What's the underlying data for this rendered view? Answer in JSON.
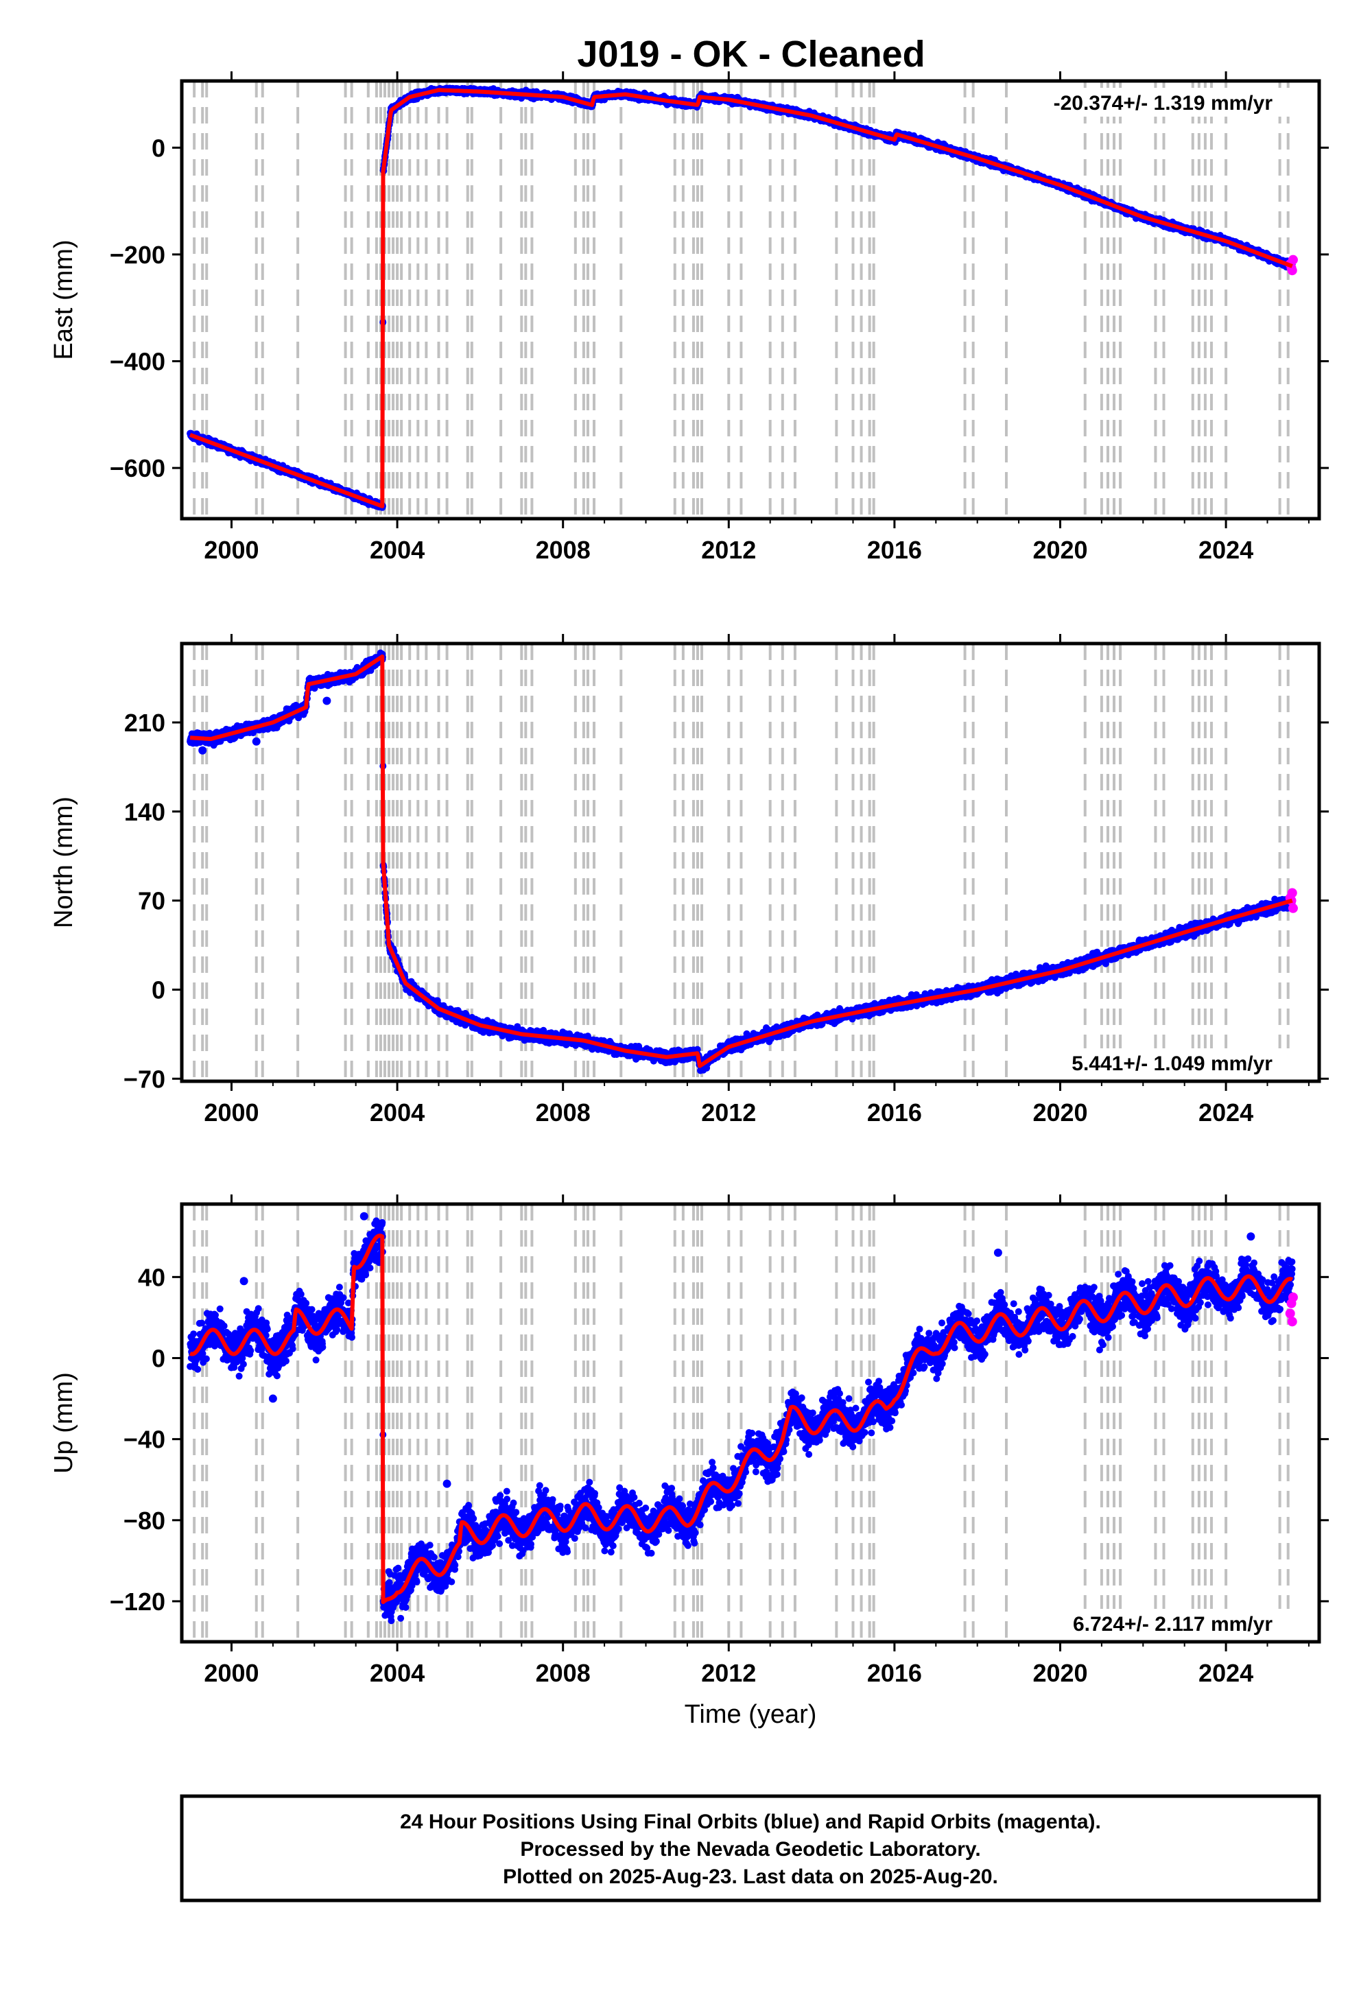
{
  "title": "J019  - OK - Cleaned",
  "footer": {
    "lines": [
      "24 Hour Positions Using Final Orbits (blue) and Rapid Orbits (magenta).",
      "Processed by the Nevada Geodetic Laboratory.",
      "Plotted on 2025-Aug-23. Last data on 2025-Aug-20."
    ]
  },
  "colors": {
    "final_orbits": "#0000ff",
    "rapid_orbits": "#ff00ff",
    "model": "#ff0000",
    "event_lines": "#c0c0c0"
  },
  "chart_data": [
    {
      "type": "scatter",
      "component": "east",
      "xlabel": "",
      "ylabel": "East (mm)",
      "xlim": [
        1998.8,
        2026.25
      ],
      "ylim": [
        -695,
        125
      ],
      "xticks": [
        2000,
        2004,
        2008,
        2012,
        2016,
        2020,
        2024
      ],
      "xtick_labels": [
        "2000",
        "2004",
        "2008",
        "2012",
        "2016",
        "2020",
        "2024"
      ],
      "yticks": [
        -600,
        -400,
        -200,
        0
      ],
      "ytick_labels": [
        "−600",
        "−400",
        "−200",
        "0"
      ],
      "rate_label": "-20.374+/- 1.319 mm/yr",
      "rate_position": "top-right",
      "noise": 4,
      "model": [
        [
          1999.0,
          -538
        ],
        [
          2003.65,
          -672
        ],
        [
          2003.66,
          -45
        ],
        [
          2003.85,
          70
        ],
        [
          2004.3,
          95
        ],
        [
          2005.0,
          108
        ],
        [
          2006.0,
          105
        ],
        [
          2008.0,
          95
        ],
        [
          2008.7,
          80
        ],
        [
          2008.75,
          95
        ],
        [
          2009.5,
          100
        ],
        [
          2010.5,
          88
        ],
        [
          2011.25,
          80
        ],
        [
          2011.3,
          95
        ],
        [
          2012.0,
          90
        ],
        [
          2014.0,
          60
        ],
        [
          2016.0,
          15
        ],
        [
          2016.05,
          25
        ],
        [
          2018.0,
          -20
        ],
        [
          2020.0,
          -70
        ],
        [
          2022.0,
          -130
        ],
        [
          2024.0,
          -175
        ],
        [
          2025.6,
          -222
        ]
      ],
      "rapid": [
        [
          2025.55,
          -218
        ],
        [
          2025.58,
          -225
        ],
        [
          2025.62,
          -210
        ],
        [
          2025.6,
          -230
        ]
      ]
    },
    {
      "type": "scatter",
      "component": "north",
      "xlabel": "",
      "ylabel": "North (mm)",
      "xlim": [
        1998.8,
        2026.25
      ],
      "ylim": [
        -72,
        272
      ],
      "xticks": [
        2000,
        2004,
        2008,
        2012,
        2016,
        2020,
        2024
      ],
      "xtick_labels": [
        "2000",
        "2004",
        "2008",
        "2012",
        "2016",
        "2020",
        "2024"
      ],
      "yticks": [
        -70,
        0,
        70,
        140,
        210
      ],
      "ytick_labels": [
        "−70",
        "0",
        "70",
        "140",
        "210"
      ],
      "rate_label": "5.441+/- 1.049 mm/yr",
      "rate_position": "bottom-right",
      "noise": 3,
      "model": [
        [
          1999.0,
          198
        ],
        [
          1999.5,
          197
        ],
        [
          2001.0,
          210
        ],
        [
          2001.8,
          222
        ],
        [
          2001.85,
          240
        ],
        [
          2003.0,
          248
        ],
        [
          2003.65,
          262
        ],
        [
          2003.66,
          100
        ],
        [
          2003.8,
          35
        ],
        [
          2004.2,
          5
        ],
        [
          2005.0,
          -15
        ],
        [
          2006.0,
          -28
        ],
        [
          2007.0,
          -35
        ],
        [
          2008.5,
          -40
        ],
        [
          2009.5,
          -48
        ],
        [
          2010.5,
          -53
        ],
        [
          2011.25,
          -50
        ],
        [
          2011.3,
          -60
        ],
        [
          2012.0,
          -45
        ],
        [
          2014.0,
          -25
        ],
        [
          2016.0,
          -12
        ],
        [
          2018.0,
          0
        ],
        [
          2020.0,
          15
        ],
        [
          2022.0,
          35
        ],
        [
          2024.0,
          55
        ],
        [
          2025.6,
          70
        ]
      ],
      "outliers": [
        [
          2000.6,
          195
        ],
        [
          2002.3,
          227
        ],
        [
          1999.3,
          188
        ]
      ],
      "rapid": [
        [
          2025.55,
          72
        ],
        [
          2025.6,
          76
        ],
        [
          2025.62,
          64
        ],
        [
          2025.58,
          70
        ]
      ]
    },
    {
      "type": "scatter",
      "component": "up",
      "xlabel": "Time (year)",
      "ylabel": "Up (mm)",
      "xlim": [
        1998.8,
        2026.25
      ],
      "ylim": [
        -140,
        76
      ],
      "xticks": [
        2000,
        2004,
        2008,
        2012,
        2016,
        2020,
        2024
      ],
      "xtick_labels": [
        "2000",
        "2004",
        "2008",
        "2012",
        "2016",
        "2020",
        "2024"
      ],
      "yticks": [
        -120,
        -80,
        -40,
        0,
        40
      ],
      "ytick_labels": [
        "−120",
        "−80",
        "−40",
        "0",
        "40"
      ],
      "rate_label": "6.724+/- 2.117 mm/yr",
      "rate_position": "bottom-right",
      "noise": 7,
      "model": [
        [
          1999.0,
          8
        ],
        [
          2001.5,
          8
        ],
        [
          2001.55,
          18
        ],
        [
          2002.9,
          18
        ],
        [
          2002.95,
          50
        ],
        [
          2003.65,
          55
        ],
        [
          2003.66,
          -125
        ],
        [
          2004.0,
          -110
        ],
        [
          2005.5,
          -97
        ],
        [
          2005.55,
          -87
        ],
        [
          2007.0,
          -82
        ],
        [
          2008.5,
          -78
        ],
        [
          2010.5,
          -80
        ],
        [
          2011.0,
          -77
        ],
        [
          2011.3,
          -73
        ],
        [
          2012.0,
          -60
        ],
        [
          2013.3,
          -40
        ],
        [
          2013.5,
          -30
        ],
        [
          2014.5,
          -32
        ],
        [
          2015.5,
          -28
        ],
        [
          2015.8,
          -25
        ],
        [
          2016.0,
          -15
        ],
        [
          2017.0,
          8
        ],
        [
          2018.0,
          14
        ],
        [
          2020.0,
          20
        ],
        [
          2022.0,
          28
        ],
        [
          2024.0,
          35
        ],
        [
          2025.6,
          33
        ]
      ],
      "seasonal_amp": 6,
      "outliers": [
        [
          2000.3,
          38
        ],
        [
          2001.0,
          -20
        ],
        [
          2003.2,
          70
        ],
        [
          2005.2,
          -62
        ],
        [
          2018.5,
          52
        ],
        [
          2024.6,
          60
        ]
      ],
      "rapid": [
        [
          2025.55,
          22
        ],
        [
          2025.6,
          18
        ],
        [
          2025.62,
          30
        ],
        [
          2025.58,
          27
        ]
      ]
    }
  ],
  "event_lines": [
    1999.1,
    1999.3,
    1999.4,
    2000.6,
    2000.75,
    2001.6,
    2002.75,
    2002.9,
    2003.3,
    2003.5,
    2003.6,
    2003.7,
    2003.8,
    2003.9,
    2004.0,
    2004.1,
    2004.3,
    2004.5,
    2004.7,
    2005.0,
    2005.2,
    2005.7,
    2005.8,
    2006.5,
    2007.0,
    2007.1,
    2007.25,
    2008.3,
    2008.5,
    2008.6,
    2008.75,
    2009.4,
    2010.7,
    2010.9,
    2011.15,
    2011.25,
    2011.35,
    2012.0,
    2012.3,
    2013.0,
    2013.3,
    2013.6,
    2014.6,
    2015.0,
    2015.2,
    2015.4,
    2015.5,
    2017.7,
    2017.9,
    2018.7,
    2020.6,
    2021.0,
    2021.15,
    2021.3,
    2021.45,
    2022.3,
    2022.5,
    2023.2,
    2023.35,
    2023.5,
    2023.65,
    2024.0,
    2025.3,
    2025.5
  ]
}
